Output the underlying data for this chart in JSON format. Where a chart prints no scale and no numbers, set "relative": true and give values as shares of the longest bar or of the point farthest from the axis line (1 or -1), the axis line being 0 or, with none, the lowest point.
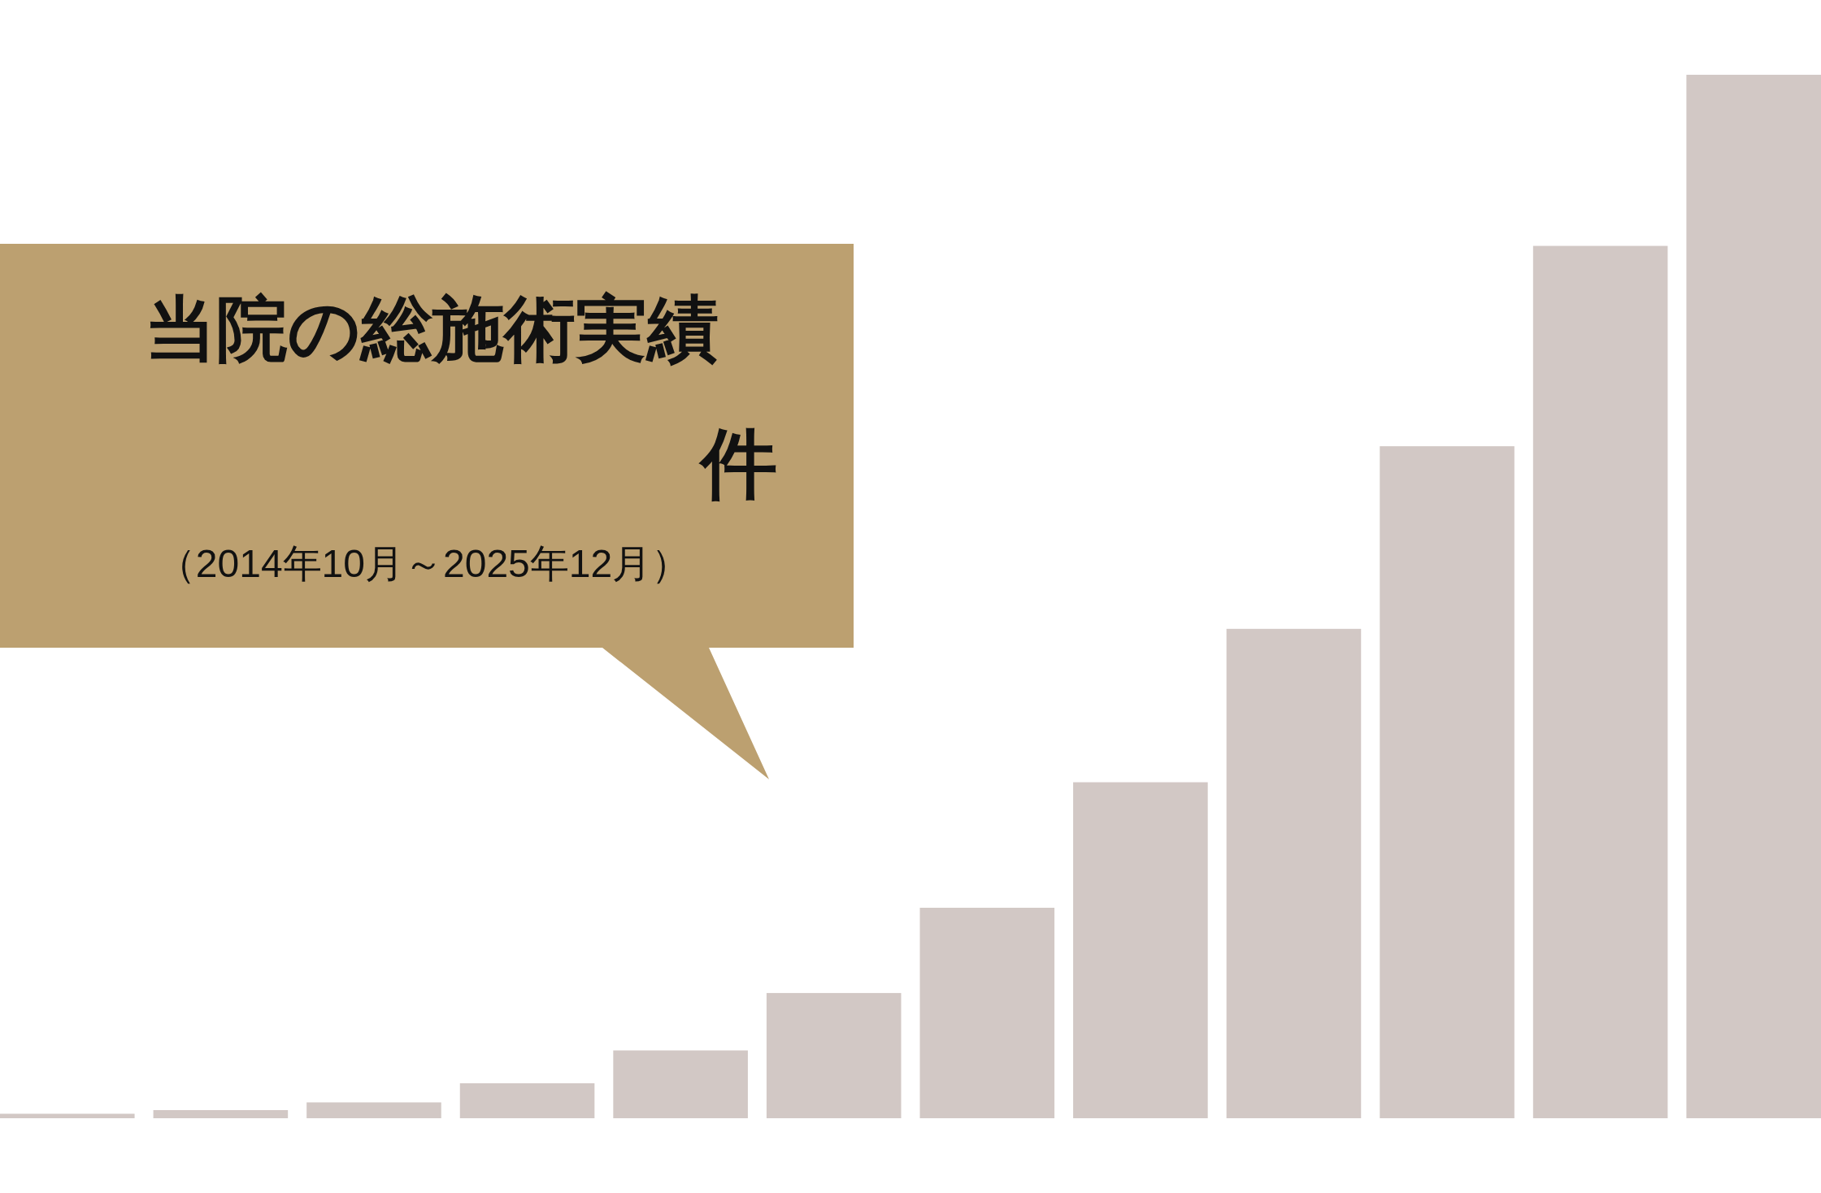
{
  "chart_data": {
    "type": "bar",
    "title": "当院の総施術実績",
    "subtitle": "（2014年10月～2025年12月）",
    "annotations": [
      "件"
    ],
    "categories": [
      null,
      null,
      null,
      null,
      null,
      null,
      null,
      null,
      null,
      null,
      null,
      null
    ],
    "values": [
      0.0043,
      0.0078,
      0.0152,
      0.0335,
      0.065,
      0.12,
      0.2017,
      0.322,
      0.469,
      0.644,
      0.836,
      1
    ],
    "color": "#d2c8c5",
    "relative": true
  }
}
